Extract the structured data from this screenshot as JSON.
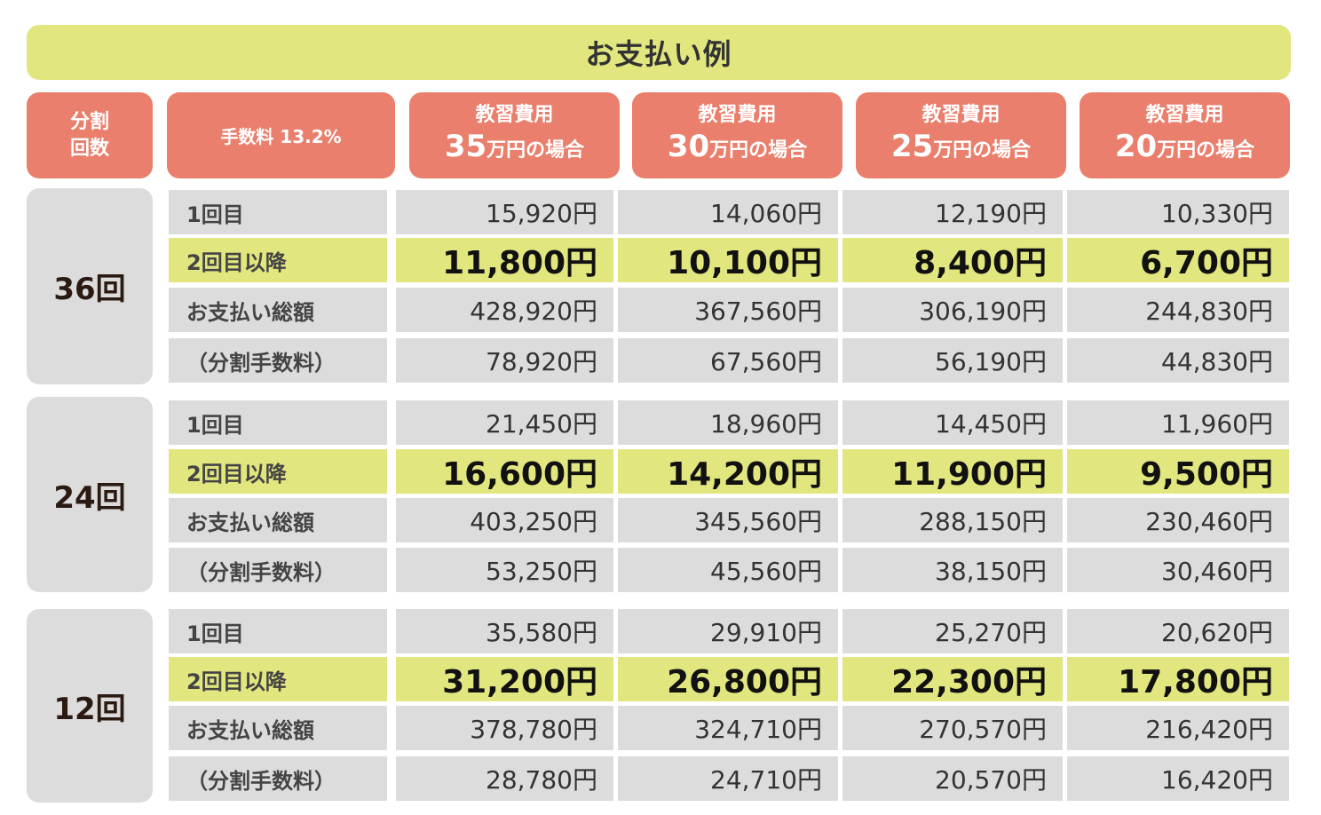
{
  "title": "お支払い例",
  "headers": {
    "split_line1": "分割",
    "split_line2": "回数",
    "fee": "手数料 13.2%",
    "cost_prefix": "教習費用",
    "costs": [
      {
        "amount": "35",
        "suffix": "万円の場合"
      },
      {
        "amount": "30",
        "suffix": "万円の場合"
      },
      {
        "amount": "25",
        "suffix": "万円の場合"
      },
      {
        "amount": "20",
        "suffix": "万円の場合"
      }
    ]
  },
  "row_labels": [
    "1回目",
    "2回目以降",
    "お支払い総額",
    "（分割手数料）"
  ],
  "groups": [
    {
      "label": "36回",
      "rows": [
        [
          "15,920円",
          "14,060円",
          "12,190円",
          "10,330円"
        ],
        [
          "11,800円",
          "10,100円",
          "8,400円",
          "6,700円"
        ],
        [
          "428,920円",
          "367,560円",
          "306,190円",
          "244,830円"
        ],
        [
          "78,920円",
          "67,560円",
          "56,190円",
          "44,830円"
        ]
      ]
    },
    {
      "label": "24回",
      "rows": [
        [
          "21,450円",
          "18,960円",
          "14,450円",
          "11,960円"
        ],
        [
          "16,600円",
          "14,200円",
          "11,900円",
          "9,500円"
        ],
        [
          "403,250円",
          "345,560円",
          "288,150円",
          "230,460円"
        ],
        [
          "53,250円",
          "45,560円",
          "38,150円",
          "30,460円"
        ]
      ]
    },
    {
      "label": "12回",
      "rows": [
        [
          "35,580円",
          "29,910円",
          "25,270円",
          "20,620円"
        ],
        [
          "31,200円",
          "26,800円",
          "22,300円",
          "17,800円"
        ],
        [
          "378,780円",
          "324,710円",
          "270,570円",
          "216,420円"
        ],
        [
          "28,780円",
          "24,710円",
          "20,570円",
          "16,420円"
        ]
      ]
    }
  ],
  "colors": {
    "title_bg": "#e1e67f",
    "header_bg": "#e97f6c",
    "cell_bg": "#dcdcdc",
    "highlight_bg": "#e1e67f"
  }
}
